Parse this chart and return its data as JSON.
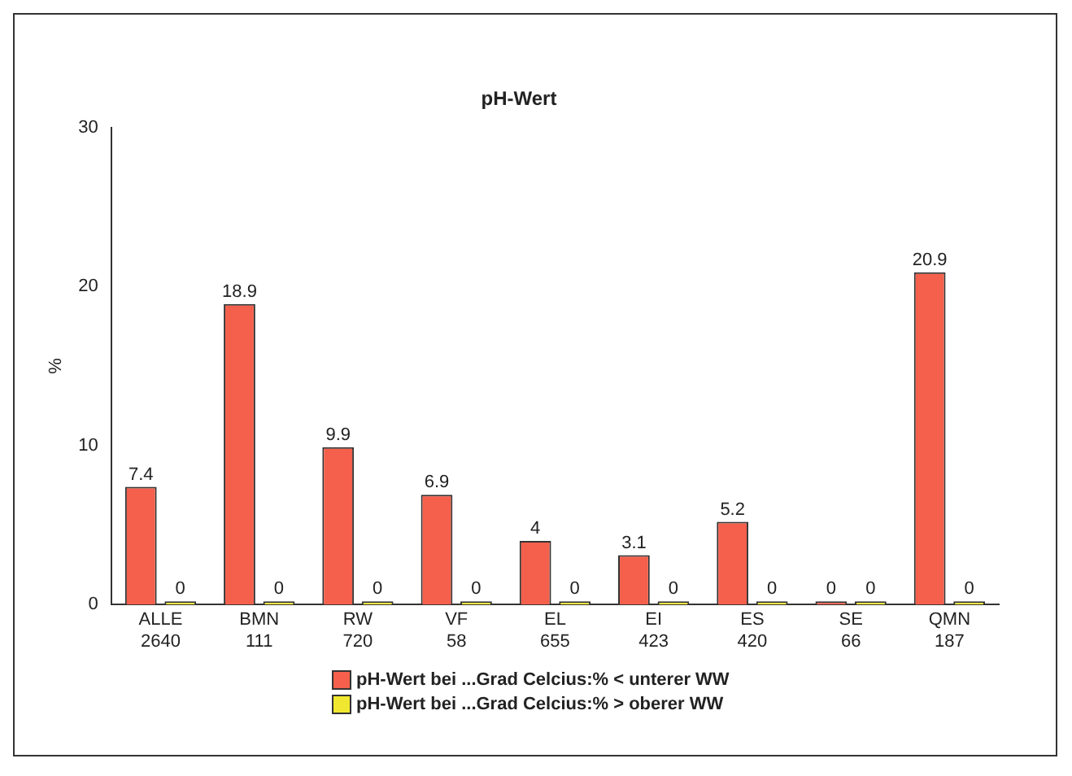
{
  "chart_data": {
    "type": "bar",
    "title": "pH-Wert",
    "ylabel": "%",
    "categories": [
      "ALLE\n2640",
      "BMN\n111",
      "RW\n720",
      "VF\n58",
      "EL\n655",
      "EI\n423",
      "ES\n420",
      "SE\n66",
      "QMN\n187"
    ],
    "series": [
      {
        "name": "pH-Wert bei ...Grad Celcius:% < unterer WW",
        "color": "#f4604c",
        "values": [
          7.4,
          18.9,
          9.9,
          6.9,
          4,
          3.1,
          5.2,
          0,
          20.9
        ]
      },
      {
        "name": "pH-Wert bei ...Grad Celcius:% > oberer WW",
        "color": "#f0e830",
        "values": [
          0,
          0,
          0,
          0,
          0,
          0,
          0,
          0,
          0
        ]
      }
    ],
    "ylim": [
      0,
      30
    ],
    "yticks": [
      0,
      10,
      20,
      30
    ],
    "grid": false,
    "legend": "bottom",
    "data_labels": true
  }
}
